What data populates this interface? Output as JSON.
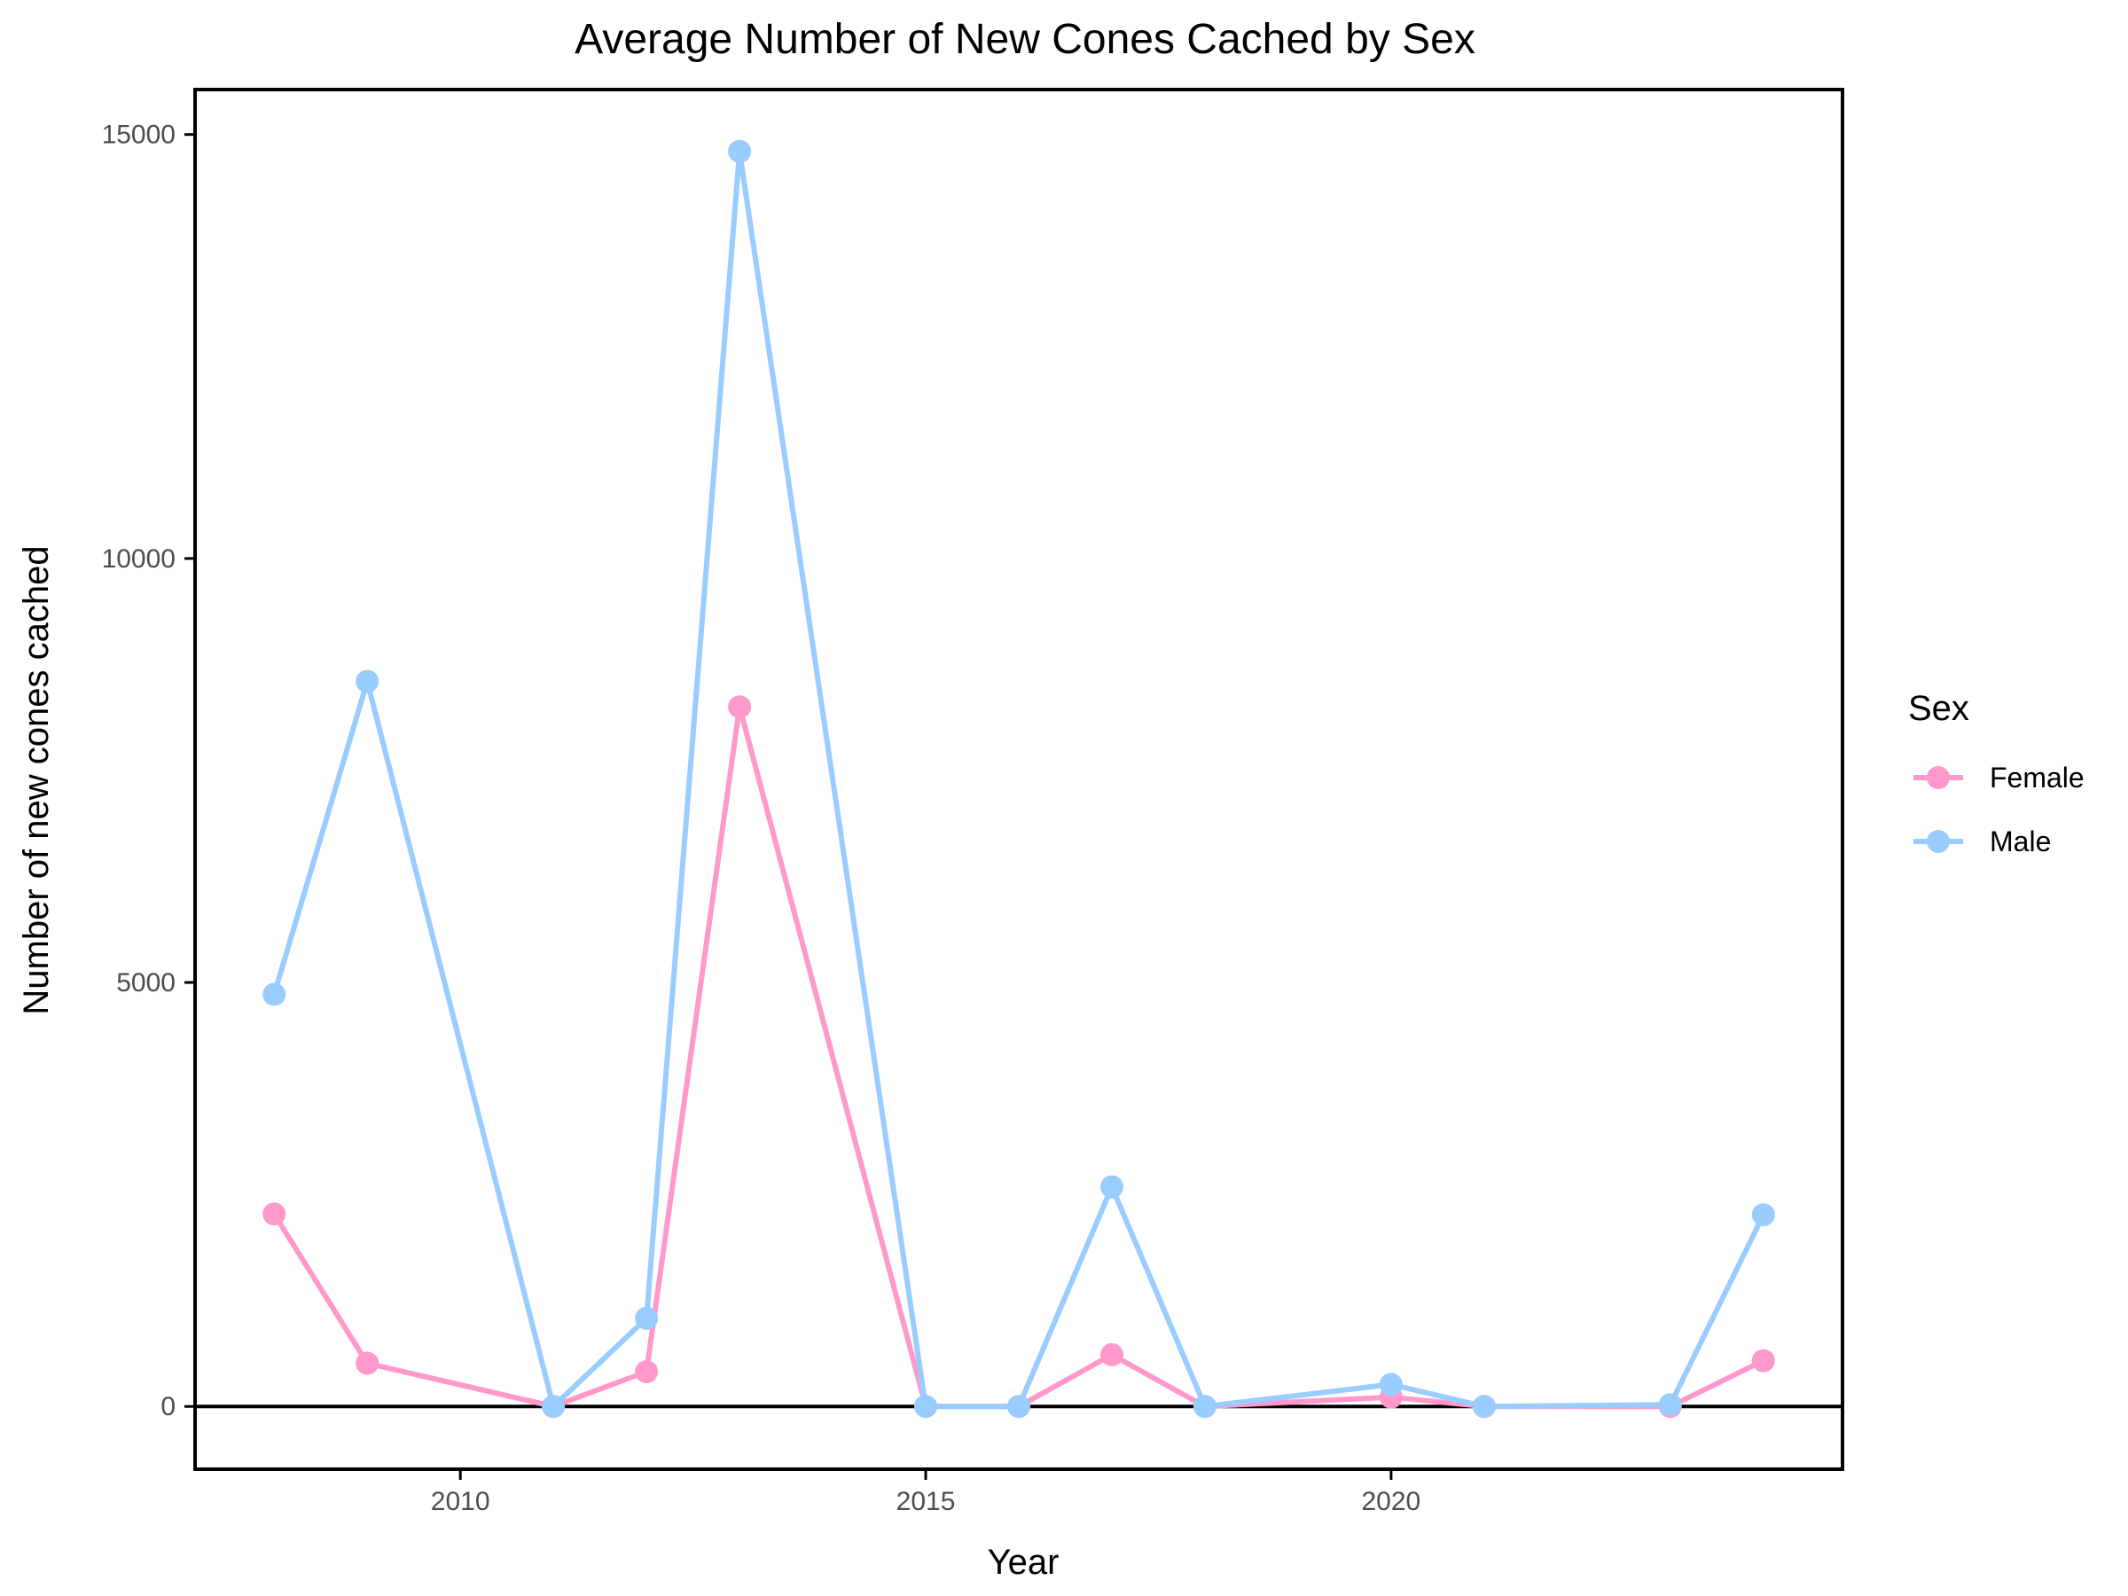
{
  "chart_data": {
    "type": "line",
    "title": "Average Number of New Cones Cached by Sex",
    "xlabel": "Year",
    "ylabel": "Number of new cones cached",
    "xlim": [
      2007.15,
      2024.85
    ],
    "ylim": [
      -740,
      15530
    ],
    "xticks": [
      2010,
      2015,
      2020
    ],
    "yticks": [
      0,
      5000,
      10000,
      15000
    ],
    "zero_line": true,
    "grid": false,
    "legend": {
      "title": "Sex",
      "position": "right"
    },
    "series": [
      {
        "name": "Female",
        "color": "#FF99CC",
        "points": [
          [
            2008,
            2270
          ],
          [
            2009,
            510
          ],
          [
            2011,
            0
          ],
          [
            2012,
            410
          ],
          [
            2013,
            8250
          ],
          [
            2015,
            0
          ],
          [
            2016,
            0
          ],
          [
            2017,
            610
          ],
          [
            2018,
            0
          ],
          [
            2020,
            110
          ],
          [
            2021,
            0
          ],
          [
            2023,
            0
          ],
          [
            2024,
            540
          ]
        ]
      },
      {
        "name": "Male",
        "color": "#99CCFF",
        "points": [
          [
            2008,
            4860
          ],
          [
            2009,
            8550
          ],
          [
            2011,
            0
          ],
          [
            2012,
            1040
          ],
          [
            2013,
            14800
          ],
          [
            2015,
            0
          ],
          [
            2016,
            0
          ],
          [
            2017,
            2590
          ],
          [
            2018,
            0
          ],
          [
            2020,
            260
          ],
          [
            2021,
            0
          ],
          [
            2023,
            20
          ],
          [
            2024,
            2260
          ]
        ]
      }
    ]
  }
}
